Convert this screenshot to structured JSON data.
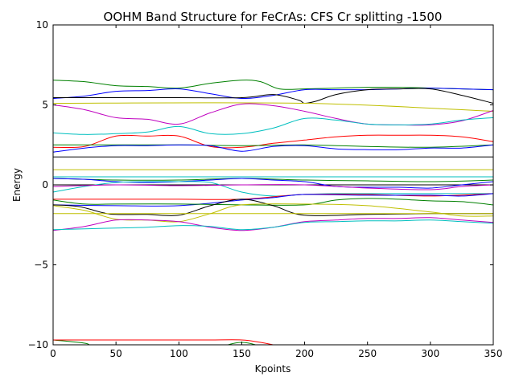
{
  "chart_data": {
    "type": "line",
    "title": "OOHM Band Structure for FeCrAs: CFS Cr splitting -1500",
    "xlabel": "Kpoints",
    "ylabel": "Energy",
    "xlim": [
      0,
      350
    ],
    "ylim": [
      -10,
      10
    ],
    "xticks": [
      0,
      50,
      100,
      150,
      200,
      250,
      300,
      350
    ],
    "xtick_labels": [
      "0",
      "50",
      "100",
      "150",
      "200",
      "250",
      "300",
      "350"
    ],
    "yticks": [
      -10,
      -5,
      0,
      5,
      10
    ],
    "ytick_labels": [
      "−10",
      "−5",
      "0",
      "5",
      "10"
    ],
    "grid": false,
    "legend": "none",
    "series": [
      {
        "color": "#008000",
        "x": [
          0,
          25,
          50,
          75,
          100,
          125,
          150,
          165,
          180,
          200,
          225,
          250,
          275,
          300,
          325,
          350
        ],
        "y": [
          6.55,
          6.45,
          6.2,
          6.15,
          6.05,
          6.35,
          6.55,
          6.45,
          6.0,
          6.0,
          6.05,
          6.1,
          6.1,
          6.05,
          6.0,
          5.95
        ]
      },
      {
        "color": "#0000ff",
        "x": [
          0,
          25,
          50,
          75,
          100,
          125,
          150,
          175,
          200,
          225,
          250,
          275,
          300,
          325,
          350
        ],
        "y": [
          5.4,
          5.55,
          5.85,
          5.9,
          6.0,
          5.7,
          5.4,
          5.6,
          5.95,
          5.95,
          5.95,
          6.0,
          6.05,
          6.0,
          5.95
        ]
      },
      {
        "color": "#000000",
        "x": [
          0,
          50,
          100,
          150,
          175,
          195,
          200,
          210,
          225,
          250,
          275,
          300,
          325,
          350
        ],
        "y": [
          5.45,
          5.45,
          5.45,
          5.45,
          5.65,
          5.3,
          5.1,
          5.25,
          5.65,
          5.95,
          6.0,
          6.0,
          5.6,
          5.1
        ]
      },
      {
        "color": "#bfbf00",
        "x": [
          0,
          200,
          350
        ],
        "y": [
          5.1,
          5.1,
          4.6
        ]
      },
      {
        "color": "#bf00bf",
        "x": [
          0,
          25,
          50,
          75,
          100,
          125,
          150,
          175,
          200,
          225,
          250,
          275,
          300,
          325,
          350
        ],
        "y": [
          5.0,
          4.7,
          4.2,
          4.1,
          3.8,
          4.5,
          5.05,
          4.95,
          4.6,
          4.15,
          3.8,
          3.75,
          3.75,
          4.0,
          4.65
        ]
      },
      {
        "color": "#00bfbf",
        "x": [
          0,
          25,
          50,
          75,
          100,
          125,
          150,
          175,
          200,
          225,
          250,
          275,
          300,
          325,
          350
        ],
        "y": [
          3.25,
          3.15,
          3.2,
          3.3,
          3.65,
          3.2,
          3.2,
          3.55,
          4.15,
          4.05,
          3.8,
          3.75,
          3.8,
          4.05,
          4.2
        ]
      },
      {
        "color": "#ff0000",
        "x": [
          0,
          25,
          50,
          75,
          100,
          125,
          150,
          175,
          200,
          225,
          250,
          275,
          300,
          325,
          350
        ],
        "y": [
          2.35,
          2.4,
          3.05,
          3.05,
          3.05,
          2.4,
          2.35,
          2.6,
          2.8,
          3.0,
          3.1,
          3.1,
          3.1,
          3.0,
          2.7
        ]
      },
      {
        "color": "#008000",
        "x": [
          0,
          50,
          100,
          150,
          200,
          250,
          300,
          350
        ],
        "y": [
          2.5,
          2.5,
          2.5,
          2.45,
          2.5,
          2.4,
          2.35,
          2.5
        ]
      },
      {
        "color": "#0000ff",
        "x": [
          0,
          25,
          50,
          75,
          100,
          125,
          150,
          175,
          200,
          225,
          250,
          275,
          300,
          325,
          350
        ],
        "y": [
          2.05,
          2.3,
          2.45,
          2.45,
          2.5,
          2.45,
          2.1,
          2.4,
          2.45,
          2.25,
          2.2,
          2.2,
          2.3,
          2.3,
          2.5
        ]
      },
      {
        "color": "#000000",
        "x": [
          0,
          350
        ],
        "y": [
          1.75,
          1.75
        ]
      },
      {
        "color": "#bfbf00",
        "x": [
          0,
          350
        ],
        "y": [
          0.95,
          0.95
        ]
      },
      {
        "color": "#00bfbf",
        "x": [
          0,
          350
        ],
        "y": [
          0.5,
          0.5
        ]
      },
      {
        "color": "#000000",
        "x": [
          0,
          350
        ],
        "y": [
          0.0,
          0.0
        ]
      },
      {
        "color": "#008000",
        "x": [
          0,
          50,
          100,
          150,
          200,
          250,
          300,
          350
        ],
        "y": [
          0.4,
          0.3,
          0.3,
          0.4,
          0.3,
          0.25,
          0.2,
          0.3
        ]
      },
      {
        "color": "#0000ff",
        "x": [
          0,
          25,
          50,
          75,
          100,
          125,
          150,
          175,
          200,
          225,
          250,
          275,
          300,
          325,
          350
        ],
        "y": [
          0.4,
          0.35,
          0.2,
          0.15,
          0.2,
          0.3,
          0.4,
          0.3,
          0.2,
          -0.1,
          -0.15,
          -0.15,
          -0.2,
          0.0,
          0.2
        ]
      },
      {
        "color": "#00bfbf",
        "x": [
          0,
          25,
          50,
          75,
          100,
          125,
          150,
          175,
          200,
          225,
          250,
          275,
          300,
          325,
          350
        ],
        "y": [
          -0.45,
          -0.1,
          0.15,
          0.2,
          0.2,
          0.15,
          -0.45,
          -0.7,
          -0.6,
          -0.55,
          -0.55,
          -0.55,
          -0.55,
          -0.55,
          -0.55
        ]
      },
      {
        "color": "#bf00bf",
        "x": [
          0,
          50,
          100,
          150,
          200,
          250,
          300,
          325,
          350
        ],
        "y": [
          -0.1,
          0.0,
          -0.05,
          0.0,
          0.0,
          -0.2,
          -0.3,
          -0.1,
          0.0
        ]
      },
      {
        "color": "#ff0000",
        "x": [
          0,
          50,
          100,
          150,
          200,
          250,
          300,
          350
        ],
        "y": [
          -0.9,
          -0.9,
          -0.9,
          -0.9,
          -0.6,
          -0.6,
          -0.7,
          -0.55
        ]
      },
      {
        "color": "#0000ff",
        "x": [
          0,
          50,
          100,
          150,
          175,
          200,
          250,
          300,
          325,
          350
        ],
        "y": [
          -1.25,
          -1.3,
          -1.3,
          -0.95,
          -0.8,
          -0.6,
          -0.65,
          -0.65,
          -0.7,
          -0.55
        ]
      },
      {
        "color": "#008000",
        "x": [
          0,
          25,
          50,
          100,
          150,
          200,
          225,
          250,
          275,
          300,
          325,
          350
        ],
        "y": [
          -0.95,
          -1.2,
          -1.2,
          -1.2,
          -1.25,
          -1.25,
          -0.95,
          -0.85,
          -0.9,
          -1.0,
          -1.05,
          -1.25
        ]
      },
      {
        "color": "#000000",
        "x": [
          0,
          20,
          40,
          50,
          75,
          100,
          125,
          150,
          175,
          200,
          250,
          300,
          350
        ],
        "y": [
          -1.25,
          -1.35,
          -1.75,
          -1.85,
          -1.85,
          -1.9,
          -1.3,
          -0.9,
          -1.3,
          -1.9,
          -1.85,
          -1.8,
          -1.8
        ]
      },
      {
        "color": "#bfbf00",
        "x": [
          0,
          350
        ],
        "y": [
          -1.8,
          -1.8
        ]
      },
      {
        "color": "#bfbf00",
        "x": [
          0,
          25,
          50,
          75,
          100,
          125,
          150,
          200,
          250,
          300,
          325,
          350
        ],
        "y": [
          -1.3,
          -1.6,
          -2.15,
          -2.2,
          -2.3,
          -1.8,
          -1.25,
          -1.2,
          -1.3,
          -1.7,
          -1.95,
          -1.95
        ]
      },
      {
        "color": "#bf00bf",
        "x": [
          0,
          25,
          50,
          75,
          100,
          125,
          150,
          175,
          200,
          225,
          250,
          275,
          300,
          325,
          350
        ],
        "y": [
          -2.85,
          -2.6,
          -2.2,
          -2.2,
          -2.3,
          -2.65,
          -2.85,
          -2.65,
          -2.3,
          -2.2,
          -2.1,
          -2.1,
          -2.05,
          -2.2,
          -2.35
        ]
      },
      {
        "color": "#00bfbf",
        "x": [
          0,
          25,
          50,
          75,
          100,
          125,
          150,
          175,
          200,
          225,
          250,
          275,
          300,
          325,
          350
        ],
        "y": [
          -2.8,
          -2.75,
          -2.7,
          -2.65,
          -2.55,
          -2.6,
          -2.8,
          -2.65,
          -2.35,
          -2.3,
          -2.25,
          -2.25,
          -2.2,
          -2.3,
          -2.4
        ]
      },
      {
        "color": "#008000",
        "x": [
          0,
          25,
          30,
          40
        ],
        "y": [
          -9.7,
          -9.9,
          -10.1,
          -10.5
        ]
      },
      {
        "color": "#008000",
        "x": [
          125,
          135,
          150,
          165,
          175
        ],
        "y": [
          -10.5,
          -10.1,
          -9.85,
          -10.1,
          -10.5
        ]
      },
      {
        "color": "#ff0000",
        "x": [
          0,
          50,
          100,
          125,
          150,
          165,
          180,
          195
        ],
        "y": [
          -9.7,
          -9.7,
          -9.7,
          -9.7,
          -9.7,
          -9.85,
          -10.1,
          -10.5
        ]
      }
    ]
  }
}
